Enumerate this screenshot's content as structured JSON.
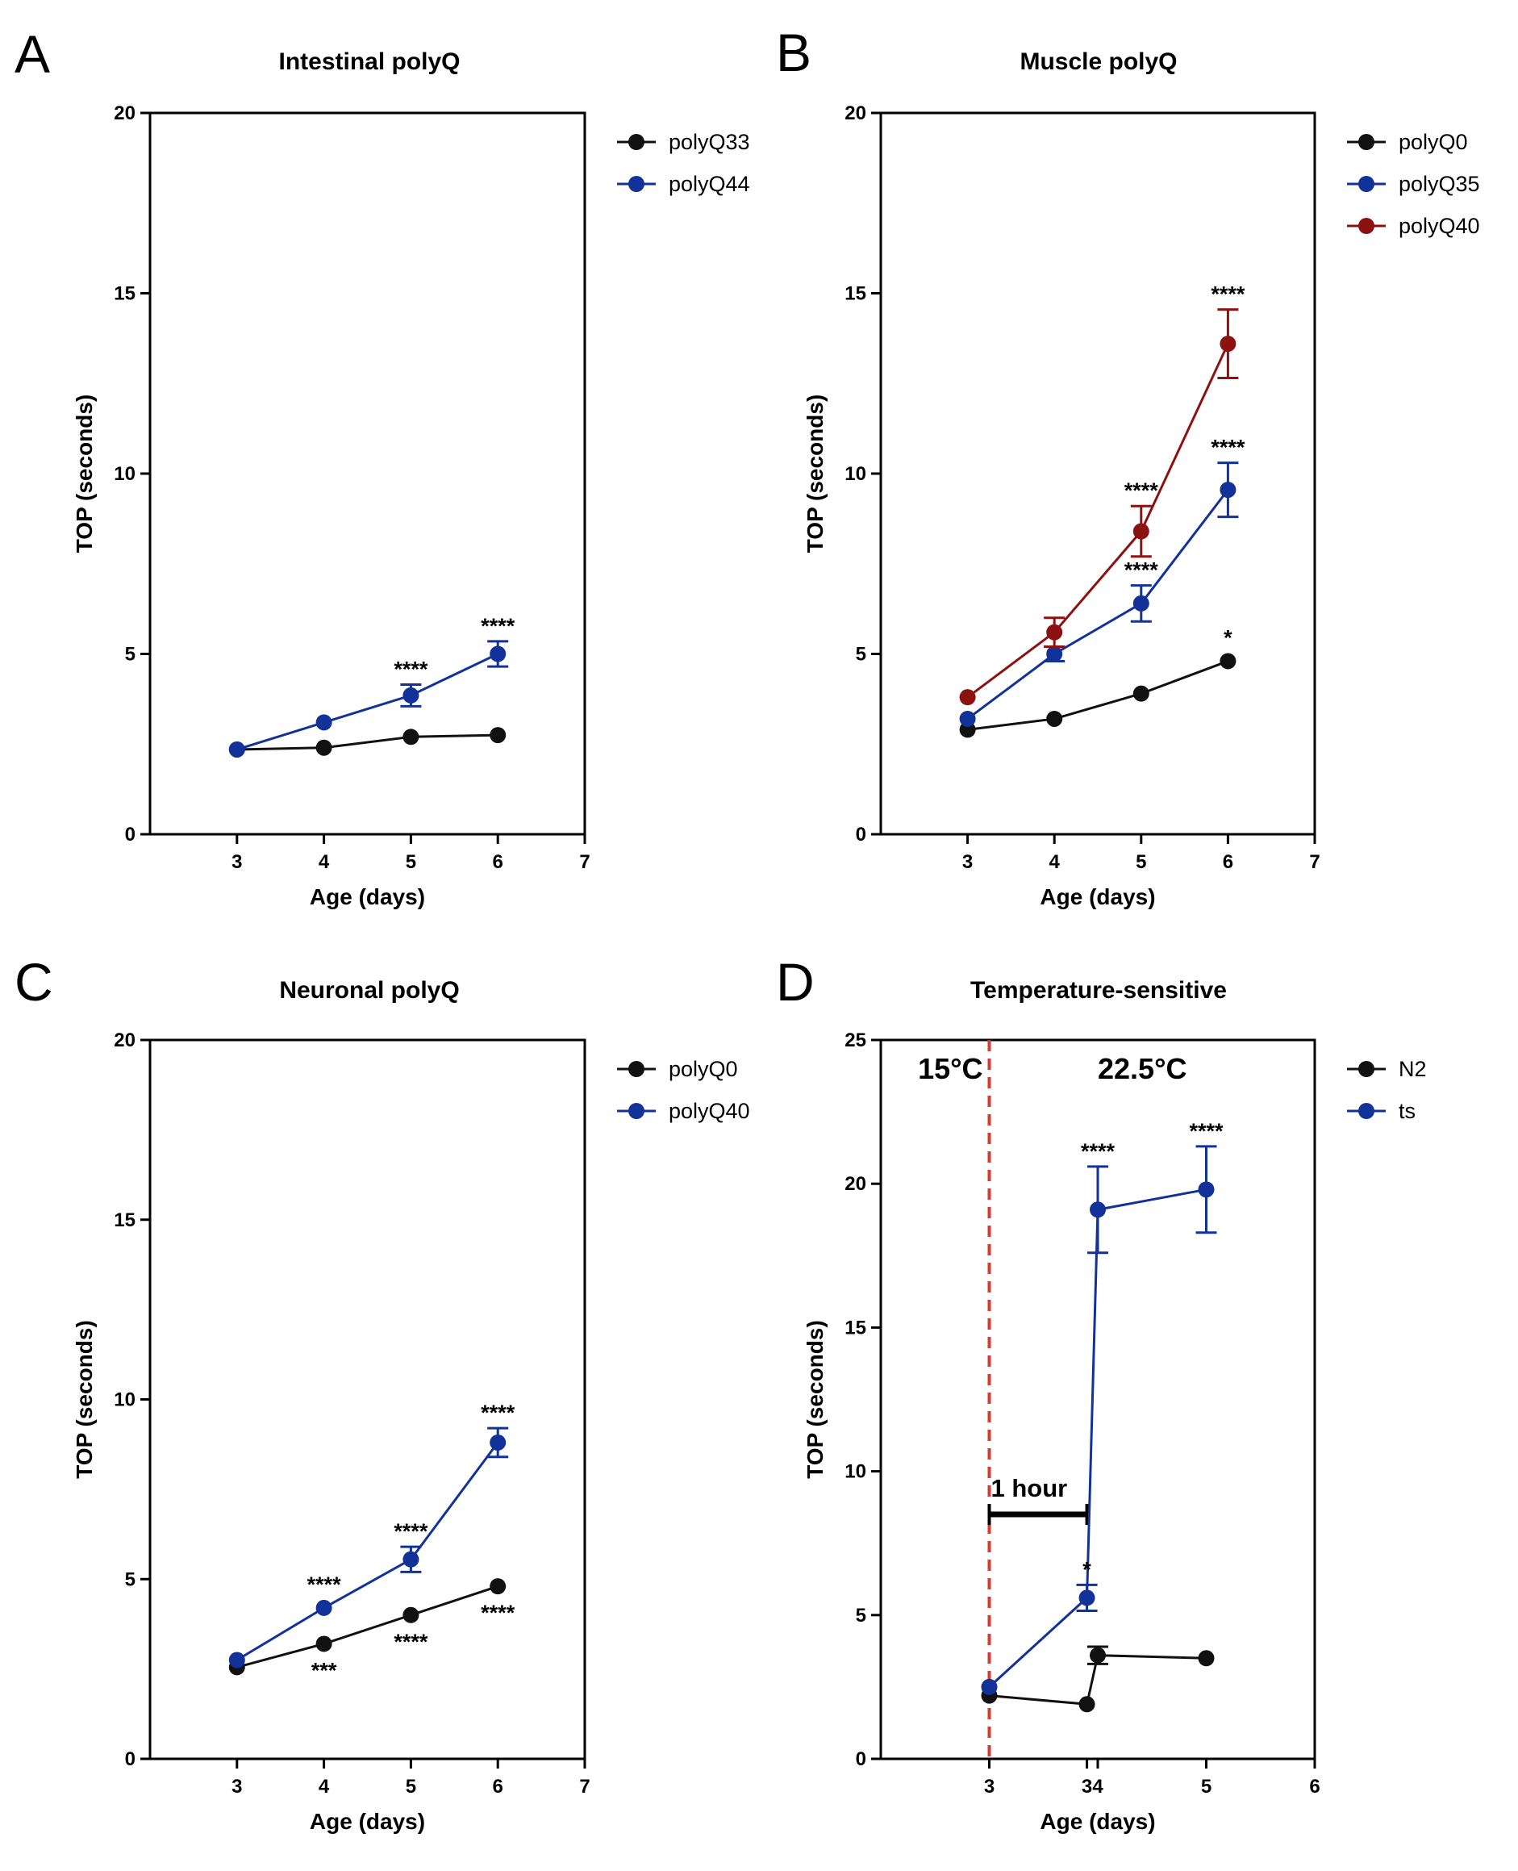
{
  "colors": {
    "black": "#111111",
    "blue": "#12329a",
    "red": "#8c1212",
    "dashed_line": "#d93a2e"
  },
  "chart_data": [
    {
      "type": "line",
      "panel": "A",
      "title": "Intestinal polyQ",
      "xlabel": "Age (days)",
      "ylabel": "TOP (seconds)",
      "xlim": [
        2,
        7
      ],
      "ylim": [
        0,
        20
      ],
      "xticks": [
        3,
        4,
        5,
        6,
        7
      ],
      "xtick_labels": [
        "3",
        "4",
        "5",
        "6",
        "7"
      ],
      "yticks": [
        0,
        5,
        10,
        15,
        20
      ],
      "legend": "top-right",
      "grid": false,
      "series": [
        {
          "name": "polyQ33",
          "color": "#111111",
          "x": [
            3,
            4,
            5,
            6
          ],
          "y": [
            2.35,
            2.4,
            2.7,
            2.75
          ],
          "err": [
            0,
            0,
            0,
            0
          ],
          "labels": [
            "",
            "",
            "",
            ""
          ],
          "label_pos": [
            "above",
            "above",
            "above",
            "above"
          ]
        },
        {
          "name": "polyQ44",
          "color": "#12329a",
          "x": [
            3,
            4,
            5,
            6
          ],
          "y": [
            2.35,
            3.1,
            3.85,
            5.0
          ],
          "err": [
            0,
            0,
            0.3,
            0.35
          ],
          "labels": [
            "",
            "",
            "****",
            "****"
          ],
          "label_pos": [
            "above",
            "above",
            "above",
            "above"
          ]
        }
      ]
    },
    {
      "type": "line",
      "panel": "B",
      "title": "Muscle polyQ",
      "xlabel": "Age (days)",
      "ylabel": "TOP (seconds)",
      "xlim": [
        2,
        7
      ],
      "ylim": [
        0,
        20
      ],
      "xticks": [
        3,
        4,
        5,
        6,
        7
      ],
      "xtick_labels": [
        "3",
        "4",
        "5",
        "6",
        "7"
      ],
      "yticks": [
        0,
        5,
        10,
        15,
        20
      ],
      "legend": "top-right",
      "grid": false,
      "series": [
        {
          "name": "polyQ0",
          "color": "#111111",
          "x": [
            3,
            4,
            5,
            6
          ],
          "y": [
            2.9,
            3.2,
            3.9,
            4.8
          ],
          "err": [
            0,
            0,
            0,
            0
          ],
          "labels": [
            "",
            "",
            "",
            "*"
          ],
          "label_pos": [
            "above",
            "above",
            "above",
            "above"
          ]
        },
        {
          "name": "polyQ35",
          "color": "#12329a",
          "x": [
            3,
            4,
            5,
            6
          ],
          "y": [
            3.2,
            5.0,
            6.4,
            9.55
          ],
          "err": [
            0,
            0.2,
            0.5,
            0.75
          ],
          "labels": [
            "",
            "",
            "****",
            "****"
          ],
          "label_pos": [
            "above",
            "above",
            "above",
            "above"
          ]
        },
        {
          "name": "polyQ40",
          "color": "#8c1212",
          "x": [
            3,
            4,
            5,
            6
          ],
          "y": [
            3.8,
            5.6,
            8.4,
            13.6
          ],
          "err": [
            0,
            0.4,
            0.7,
            0.95
          ],
          "labels": [
            "",
            "",
            "****",
            "****"
          ],
          "label_pos": [
            "above",
            "above",
            "above",
            "above"
          ]
        }
      ]
    },
    {
      "type": "line",
      "panel": "C",
      "title": "Neuronal polyQ",
      "xlabel": "Age (days)",
      "ylabel": "TOP (seconds)",
      "xlim": [
        2,
        7
      ],
      "ylim": [
        0,
        20
      ],
      "xticks": [
        3,
        4,
        5,
        6,
        7
      ],
      "xtick_labels": [
        "3",
        "4",
        "5",
        "6",
        "7"
      ],
      "yticks": [
        0,
        5,
        10,
        15,
        20
      ],
      "legend": "top-right",
      "grid": false,
      "series": [
        {
          "name": "polyQ0",
          "color": "#111111",
          "x": [
            3,
            4,
            5,
            6
          ],
          "y": [
            2.55,
            3.2,
            4.0,
            4.8
          ],
          "err": [
            0,
            0,
            0,
            0
          ],
          "labels": [
            "",
            "***",
            "****",
            "****"
          ],
          "label_pos": [
            "below",
            "below",
            "below",
            "below"
          ]
        },
        {
          "name": "polyQ40",
          "color": "#12329a",
          "x": [
            3,
            4,
            5,
            6
          ],
          "y": [
            2.75,
            4.2,
            5.55,
            8.8
          ],
          "err": [
            0,
            0,
            0.35,
            0.4
          ],
          "labels": [
            "",
            "****",
            "****",
            "****"
          ],
          "label_pos": [
            "above",
            "above",
            "above",
            "above"
          ]
        }
      ]
    },
    {
      "type": "line",
      "panel": "D",
      "title": "Temperature-sensitive",
      "xlabel": "Age (days)",
      "ylabel": "TOP (seconds)",
      "xlim": [
        2,
        6
      ],
      "ylim": [
        0,
        25
      ],
      "xticks": [
        3,
        3.9,
        4,
        5,
        6
      ],
      "xtick_labels": [
        "3",
        "3",
        "4",
        "5",
        "6"
      ],
      "yticks": [
        0,
        5,
        10,
        15,
        20,
        25
      ],
      "legend": "top-right",
      "grid": false,
      "series": [
        {
          "name": "N2",
          "color": "#111111",
          "x": [
            3,
            3.9,
            4,
            5
          ],
          "y": [
            2.2,
            1.9,
            3.6,
            3.5
          ],
          "err": [
            0,
            0,
            0.3,
            0
          ],
          "labels": [
            "",
            "",
            "",
            ""
          ],
          "label_pos": [
            "above",
            "above",
            "above",
            "above"
          ]
        },
        {
          "name": "ts",
          "color": "#12329a",
          "x": [
            3,
            3.9,
            4,
            5
          ],
          "y": [
            2.5,
            5.6,
            19.1,
            19.8
          ],
          "err": [
            0,
            0.45,
            1.5,
            1.5
          ],
          "labels": [
            "",
            "*",
            "****",
            "****"
          ],
          "label_pos": [
            "above",
            "above",
            "above",
            "above"
          ]
        }
      ],
      "temperature_left": "15°C",
      "temperature_right": "22.5°C",
      "interval_label": "1 hour"
    }
  ]
}
